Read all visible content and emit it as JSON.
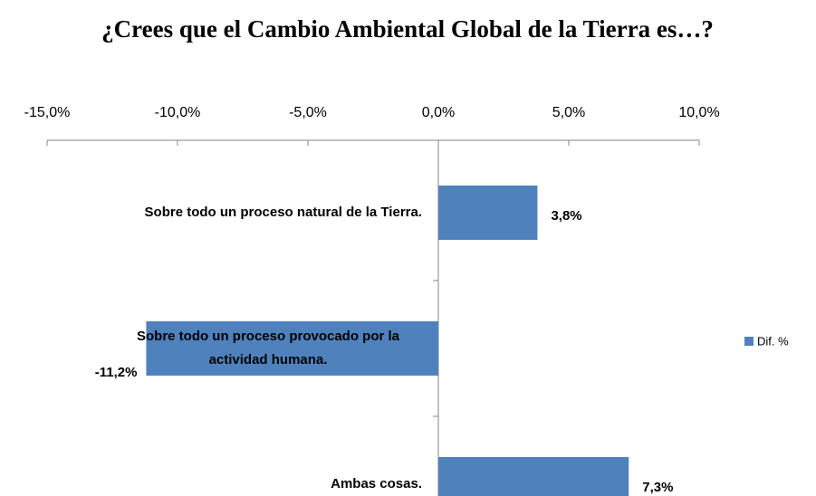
{
  "chart_data": {
    "type": "bar",
    "orientation": "horizontal",
    "title": "¿Crees que el Cambio Ambiental Global de la Tierra es…?",
    "categories": [
      "Sobre todo un proceso natural de la Tierra.",
      "Sobre todo un proceso provocado por la actividad humana.",
      "Ambas cosas."
    ],
    "series": [
      {
        "name": "Dif. %",
        "color": "#4f81bd",
        "values": [
          3.8,
          -11.2,
          7.3
        ],
        "value_labels": [
          "3,8%",
          "-11,2%",
          "7,3%"
        ]
      }
    ],
    "xlim": [
      -15,
      10
    ],
    "xticks": [
      {
        "value": -15,
        "label": "-15,0%"
      },
      {
        "value": -10,
        "label": "-10,0%"
      },
      {
        "value": -5,
        "label": "-5,0%"
      },
      {
        "value": 0,
        "label": "0,0%"
      },
      {
        "value": 5,
        "label": "5,0%"
      },
      {
        "value": 10,
        "label": "10,0%"
      }
    ],
    "legend": "right"
  }
}
